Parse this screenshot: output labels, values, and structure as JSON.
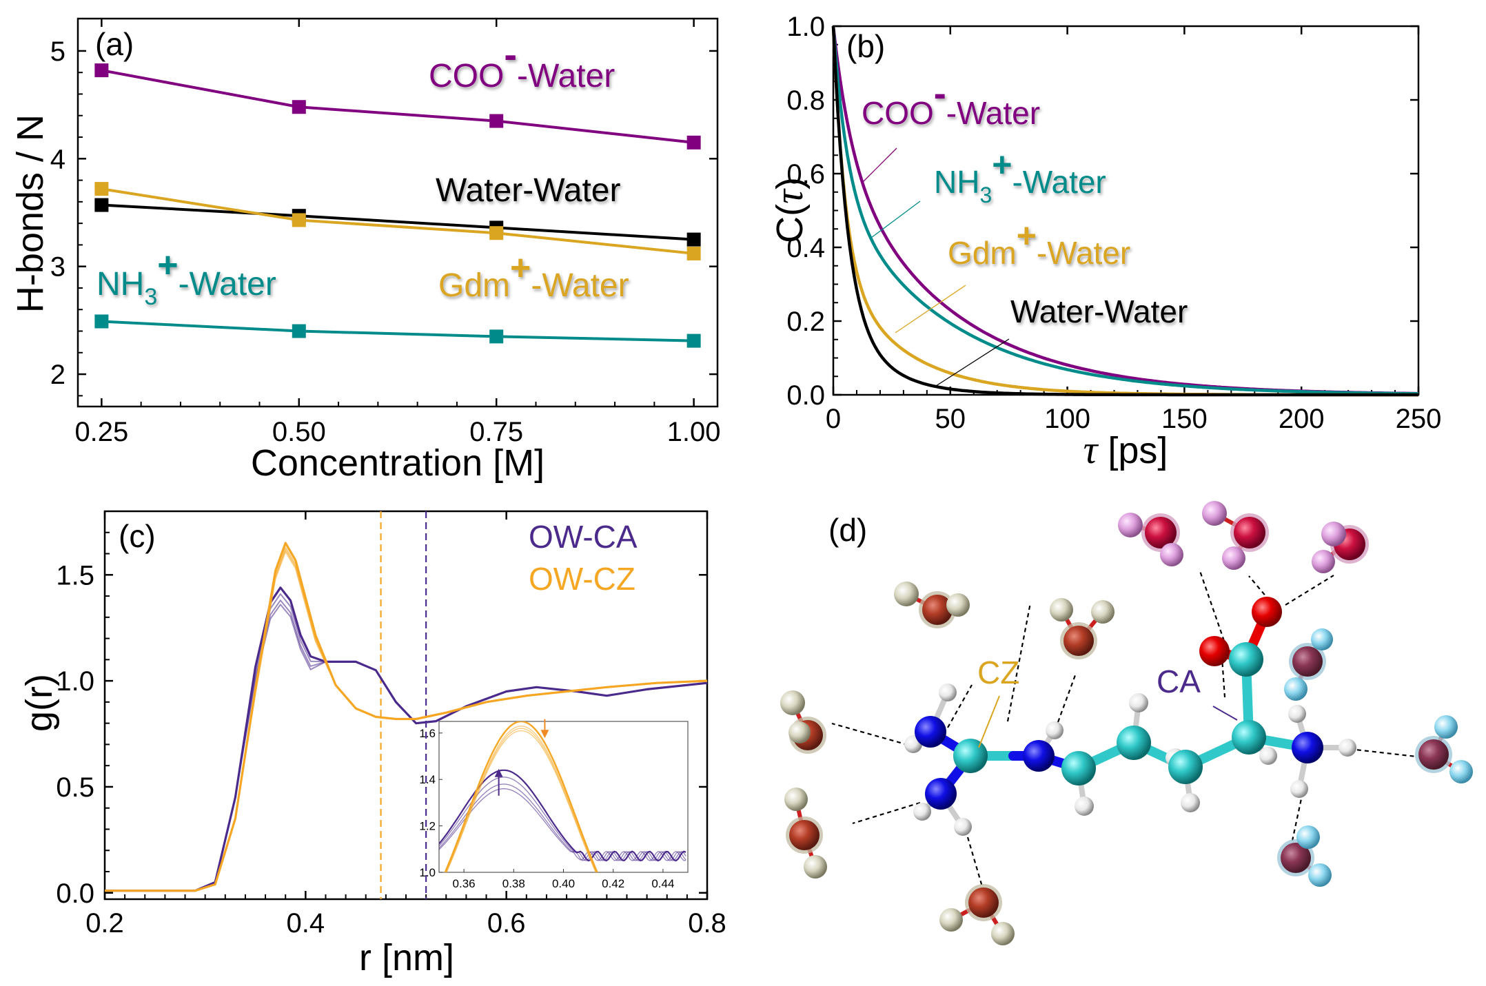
{
  "colors": {
    "coo": "#800080",
    "water": "#000000",
    "gdm": "#DAA520",
    "nh3": "#008B8B",
    "ca": "#4B2A8C",
    "cz": "#F5A623",
    "arrow_orange": "#F08A24"
  },
  "chart_data": [
    {
      "id": "a",
      "type": "line",
      "panel_label": "(a)",
      "xlabel": "Concentration [M]",
      "ylabel": "H-bonds / N",
      "x": [
        0.25,
        0.5,
        0.75,
        1.0
      ],
      "xticks": [
        "0.25",
        "0.50",
        "0.75",
        "1.00"
      ],
      "yticks": [
        "2",
        "3",
        "4",
        "5"
      ],
      "xlim": [
        0.22,
        1.03
      ],
      "ylim": [
        1.7,
        5.3
      ],
      "series": [
        {
          "name": "COO⁻-Water",
          "label_main": "COO",
          "label_sup": "-",
          "label_rest": "-Water",
          "color": "#800080",
          "values": [
            4.82,
            4.48,
            4.35,
            4.15
          ]
        },
        {
          "name": "Water-Water",
          "label_main": "Water-Water",
          "color": "#000000",
          "values": [
            3.57,
            3.47,
            3.36,
            3.25
          ]
        },
        {
          "name": "Gdm⁺-Water",
          "label_main": "Gdm",
          "label_sup": "+",
          "label_rest": "-Water",
          "color": "#DAA520",
          "values": [
            3.72,
            3.43,
            3.31,
            3.12
          ]
        },
        {
          "name": "NH₃⁺-Water",
          "label_main": "NH",
          "label_sub": "3",
          "label_sup": "+",
          "label_rest": "-Water",
          "color": "#008B8B",
          "values": [
            2.49,
            2.4,
            2.35,
            2.31
          ]
        }
      ]
    },
    {
      "id": "b",
      "type": "line",
      "panel_label": "(b)",
      "xlabel_sym": "τ",
      "xlabel_rest": " [ps]",
      "ylabel_pre": "C(",
      "ylabel_sym": "τ",
      "ylabel_post": ")",
      "xlim": [
        0,
        250
      ],
      "ylim": [
        0,
        1.0
      ],
      "xticks": [
        "0",
        "50",
        "100",
        "150",
        "200",
        "250"
      ],
      "yticks": [
        "0.0",
        "0.2",
        "0.4",
        "0.6",
        "0.8",
        "1.0"
      ],
      "series": [
        {
          "name": "COO⁻-Water",
          "color": "#800080",
          "decay": [
            [
              0.35,
              8
            ],
            [
              0.65,
              48
            ]
          ]
        },
        {
          "name": "NH₃⁺-Water",
          "color": "#008B8B",
          "decay": [
            [
              0.45,
              6
            ],
            [
              0.55,
              48
            ]
          ]
        },
        {
          "name": "Gdm⁺-Water",
          "color": "#DAA520",
          "decay": [
            [
              0.65,
              5
            ],
            [
              0.35,
              28
            ]
          ]
        },
        {
          "name": "Water-Water",
          "color": "#000000",
          "decay": [
            [
              0.75,
              6
            ],
            [
              0.25,
              18
            ]
          ]
        }
      ],
      "labels": [
        {
          "main": "COO",
          "sup": "-",
          "rest": "-Water",
          "color": "#800080"
        },
        {
          "main": "NH",
          "sub": "3",
          "sup": "+",
          "rest": "-Water",
          "color": "#008B8B"
        },
        {
          "main": "Gdm",
          "sup": "+",
          "rest": "-Water",
          "color": "#DAA520"
        },
        {
          "main": "Water-Water",
          "color": "#000000"
        }
      ]
    },
    {
      "id": "c",
      "type": "line",
      "panel_label": "(c)",
      "xlabel": "r [nm]",
      "ylabel": "g(r)",
      "xlim": [
        0.2,
        0.8
      ],
      "ylim": [
        -0.03,
        1.8
      ],
      "xticks": [
        "0.2",
        "0.4",
        "0.6",
        "0.8"
      ],
      "yticks": [
        "0.0",
        "0.5",
        "1.0",
        "1.5"
      ],
      "vlines": [
        {
          "x": 0.475,
          "color": "#F5A623"
        },
        {
          "x": 0.52,
          "color": "#4B2A8C"
        }
      ],
      "legend": [
        {
          "name": "OW-CA",
          "color": "#4B2A8C"
        },
        {
          "name": "OW-CZ",
          "color": "#F5A623"
        }
      ],
      "series": [
        {
          "name": "OW-CA",
          "color": "#4B2A8C",
          "peak_heights": [
            1.44,
            1.41,
            1.38,
            1.36
          ],
          "points": [
            [
              0.2,
              0.01
            ],
            [
              0.29,
              0.01
            ],
            [
              0.31,
              0.05
            ],
            [
              0.33,
              0.45
            ],
            [
              0.35,
              1.05
            ],
            [
              0.365,
              1.35
            ],
            [
              0.375,
              1.42
            ],
            [
              0.385,
              1.36
            ],
            [
              0.395,
              1.2
            ],
            [
              0.405,
              1.1
            ],
            [
              0.42,
              1.09
            ],
            [
              0.45,
              1.09
            ],
            [
              0.47,
              1.05
            ],
            [
              0.49,
              0.9
            ],
            [
              0.51,
              0.8
            ],
            [
              0.53,
              0.81
            ],
            [
              0.56,
              0.88
            ],
            [
              0.6,
              0.95
            ],
            [
              0.63,
              0.97
            ],
            [
              0.67,
              0.95
            ],
            [
              0.7,
              0.93
            ],
            [
              0.74,
              0.96
            ],
            [
              0.8,
              0.99
            ]
          ]
        },
        {
          "name": "OW-CZ",
          "color": "#F5A623",
          "peak_heights": [
            1.65,
            1.63,
            1.62,
            1.61
          ],
          "points": [
            [
              0.2,
              0.01
            ],
            [
              0.29,
              0.01
            ],
            [
              0.31,
              0.04
            ],
            [
              0.33,
              0.35
            ],
            [
              0.35,
              0.95
            ],
            [
              0.37,
              1.5
            ],
            [
              0.38,
              1.63
            ],
            [
              0.39,
              1.55
            ],
            [
              0.41,
              1.2
            ],
            [
              0.43,
              0.98
            ],
            [
              0.45,
              0.87
            ],
            [
              0.47,
              0.83
            ],
            [
              0.49,
              0.82
            ],
            [
              0.51,
              0.82
            ],
            [
              0.54,
              0.85
            ],
            [
              0.58,
              0.9
            ],
            [
              0.62,
              0.93
            ],
            [
              0.66,
              0.95
            ],
            [
              0.7,
              0.97
            ],
            [
              0.75,
              0.99
            ],
            [
              0.8,
              1.0
            ]
          ]
        }
      ],
      "inset": {
        "xlim": [
          0.35,
          0.45
        ],
        "ylim": [
          1.0,
          1.65
        ],
        "xticks": [
          "0.36",
          "0.38",
          "0.40",
          "0.42",
          "0.44"
        ],
        "yticks": [
          "1.0",
          "1.2",
          "1.4",
          "1.6"
        ]
      }
    }
  ],
  "panel_d": {
    "label": "(d)",
    "cz_label": "CZ",
    "ca_label": "CA"
  }
}
